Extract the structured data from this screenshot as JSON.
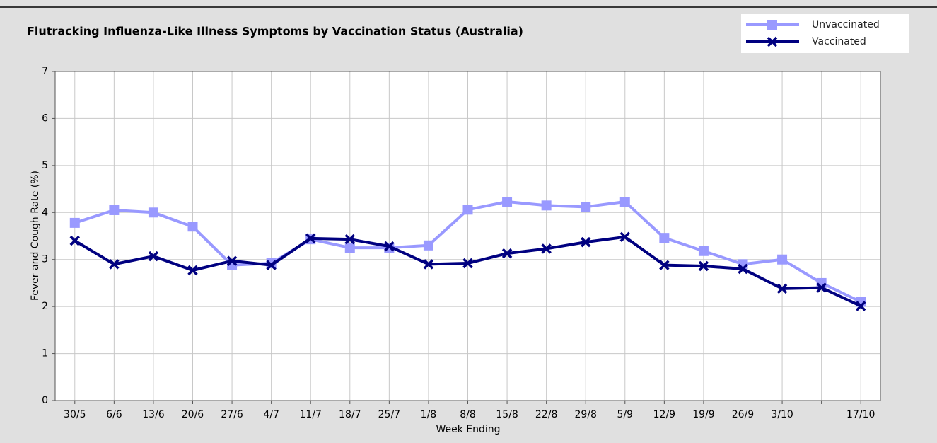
{
  "chart_data": {
    "type": "line",
    "title": "Flutracking Influenza-Like Illness Symptoms by Vaccination Status (Australia)",
    "x_label": "Week Ending",
    "y_label": "Fever and Cough Rate (%)",
    "categories": [
      "30/5",
      "6/6",
      "13/6",
      "20/6",
      "27/6",
      "4/7",
      "11/7",
      "18/7",
      "25/7",
      "1/8",
      "8/8",
      "15/8",
      "22/8",
      "29/8",
      "5/9",
      "12/9",
      "19/9",
      "26/9",
      "3/10",
      null,
      "17/10"
    ],
    "series": [
      {
        "name": "Unvaccinated",
        "color": "#9999ff",
        "marker": "square",
        "values": [
          3.78,
          4.05,
          4.0,
          3.7,
          2.88,
          2.92,
          3.43,
          3.25,
          3.25,
          3.3,
          4.06,
          4.23,
          4.15,
          4.12,
          4.23,
          3.46,
          3.18,
          2.9,
          3.0,
          2.5,
          2.1
        ]
      },
      {
        "name": "Vaccinated",
        "color": "#000080",
        "marker": "x",
        "values": [
          3.4,
          2.9,
          3.07,
          2.77,
          2.97,
          2.88,
          3.45,
          3.43,
          3.28,
          2.9,
          2.92,
          3.13,
          3.23,
          3.37,
          3.48,
          2.88,
          2.86,
          2.8,
          2.38,
          2.4,
          2.01
        ]
      }
    ],
    "ylim": [
      0,
      7
    ],
    "yticks": [
      0,
      1,
      2,
      3,
      4,
      5,
      6,
      7
    ],
    "grid": true,
    "legend": "top-right"
  }
}
